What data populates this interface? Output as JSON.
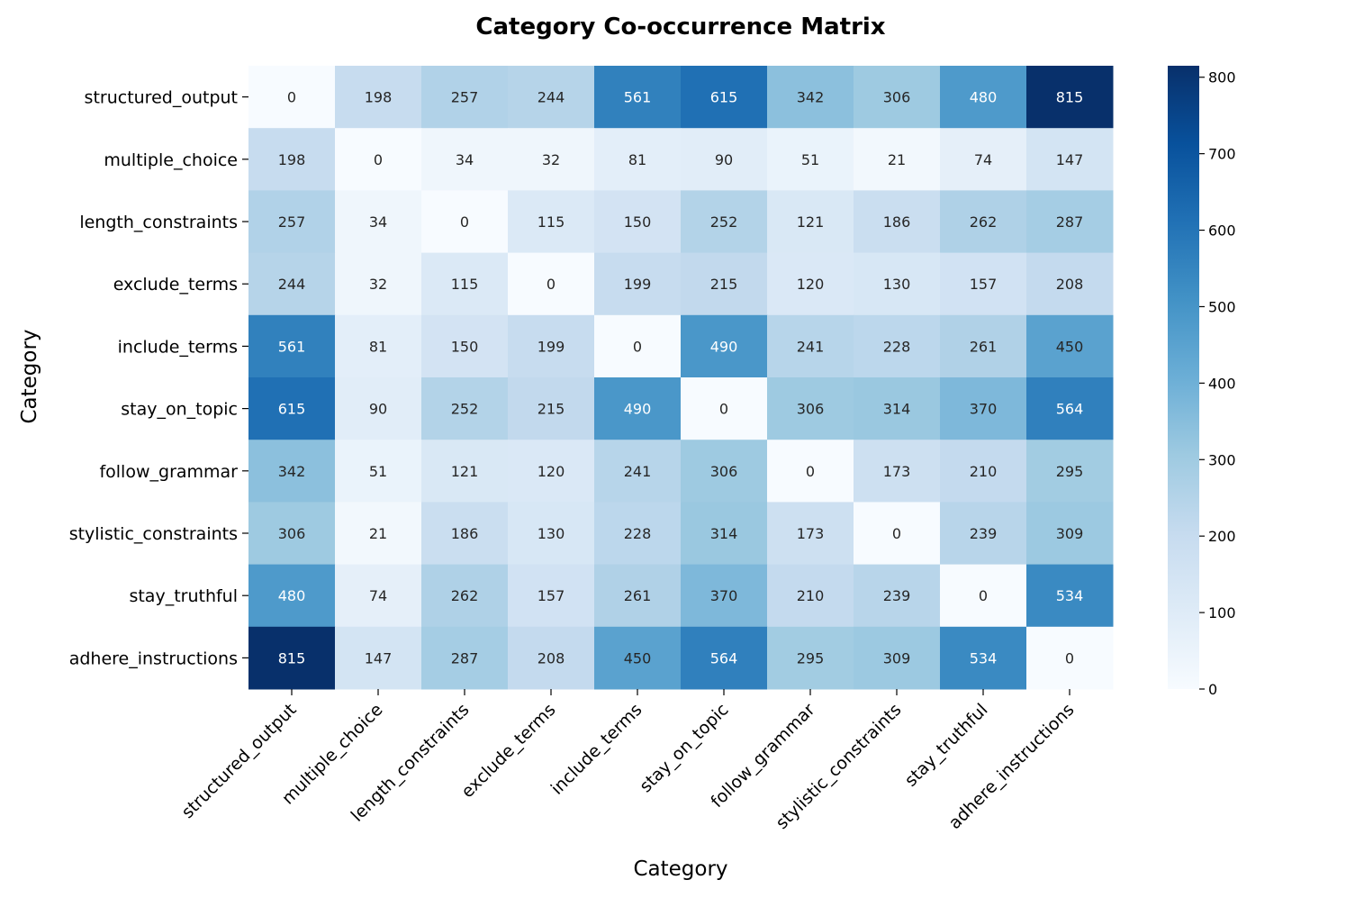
{
  "chart_data": {
    "type": "heatmap",
    "title": "Category Co-occurrence Matrix",
    "xlabel": "Category",
    "ylabel": "Category",
    "colormap": "Blues",
    "colorbar_range": [
      0,
      815
    ],
    "colorbar_ticks": [
      "0",
      "100",
      "200",
      "300",
      "400",
      "500",
      "600",
      "700",
      "800"
    ],
    "categories": [
      "structured_output",
      "multiple_choice",
      "length_constraints",
      "exclude_terms",
      "include_terms",
      "stay_on_topic",
      "follow_grammar",
      "stylistic_constraints",
      "stay_truthful",
      "adhere_instructions"
    ],
    "matrix": [
      [
        0,
        198,
        257,
        244,
        561,
        615,
        342,
        306,
        480,
        815
      ],
      [
        198,
        0,
        34,
        32,
        81,
        90,
        51,
        21,
        74,
        147
      ],
      [
        257,
        34,
        0,
        115,
        150,
        252,
        121,
        186,
        262,
        287
      ],
      [
        244,
        32,
        115,
        0,
        199,
        215,
        120,
        130,
        157,
        208
      ],
      [
        561,
        81,
        150,
        199,
        0,
        490,
        241,
        228,
        261,
        450
      ],
      [
        615,
        90,
        252,
        215,
        490,
        0,
        306,
        314,
        370,
        564
      ],
      [
        342,
        51,
        121,
        120,
        241,
        306,
        0,
        173,
        210,
        295
      ],
      [
        306,
        21,
        186,
        130,
        228,
        314,
        173,
        0,
        239,
        309
      ],
      [
        480,
        74,
        262,
        157,
        261,
        370,
        210,
        239,
        0,
        534
      ],
      [
        815,
        147,
        287,
        208,
        450,
        564,
        295,
        309,
        534,
        0
      ]
    ]
  }
}
